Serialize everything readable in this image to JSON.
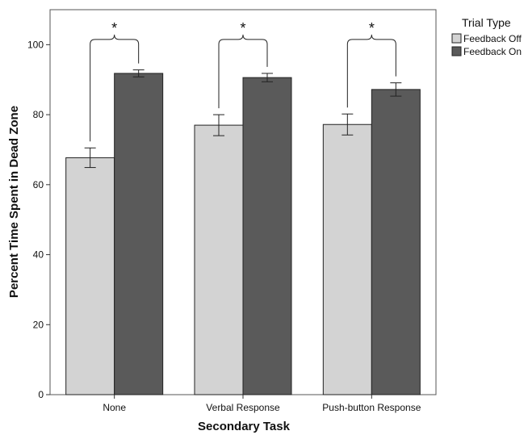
{
  "chart_data": {
    "type": "bar",
    "xlabel": "Secondary Task",
    "ylabel": "Percent Time Spent in Dead Zone",
    "ylim": [
      0,
      110
    ],
    "yticks": [
      0,
      20,
      40,
      60,
      80,
      100
    ],
    "categories": [
      "None",
      "Verbal Response",
      "Push-button Response"
    ],
    "series": [
      {
        "name": "Feedback Off",
        "color": "#d3d3d3",
        "values": [
          67.7,
          77.0,
          77.2
        ],
        "error": [
          2.8,
          3.0,
          3.0
        ]
      },
      {
        "name": "Feedback On",
        "color": "#5a5a5a",
        "values": [
          91.8,
          90.6,
          87.2
        ],
        "error": [
          1.0,
          1.2,
          1.9
        ]
      }
    ],
    "legend": {
      "title": "Trial Type",
      "placement": "right"
    },
    "annotations": [
      "*",
      "*",
      "*"
    ],
    "grid": false
  }
}
